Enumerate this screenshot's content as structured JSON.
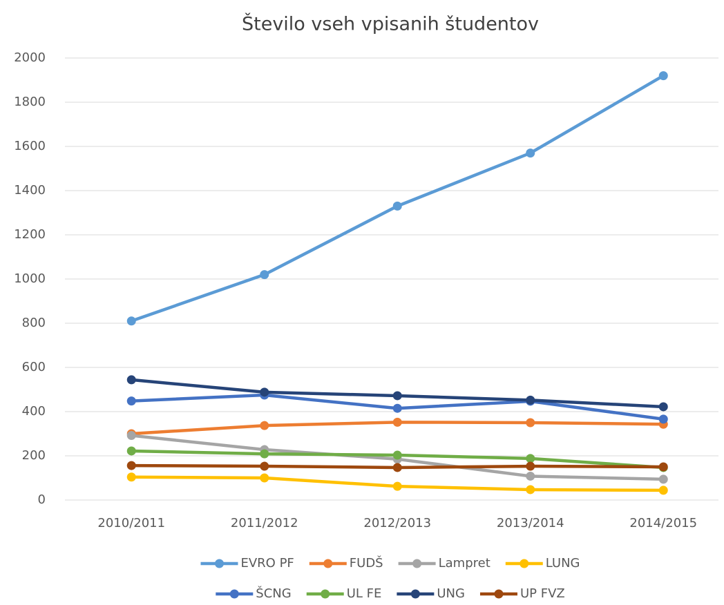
{
  "chart_data": {
    "type": "line",
    "title": "Število vseh vpisanih študentov",
    "categories": [
      "2010/2011",
      "2011/2012",
      "2012/2013",
      "2013/2014",
      "2014/2015"
    ],
    "series": [
      {
        "name": "EVRO PF",
        "color": "#5b9bd5",
        "values": [
          810,
          1020,
          1330,
          1570,
          1920
        ]
      },
      {
        "name": "FUDŠ",
        "color": "#ed7d31",
        "values": [
          300,
          337,
          352,
          350,
          343
        ]
      },
      {
        "name": "Lampret",
        "color": "#a5a5a5",
        "values": [
          292,
          228,
          185,
          108,
          94
        ]
      },
      {
        "name": "LUNG",
        "color": "#ffc000",
        "values": [
          104,
          100,
          62,
          47,
          44
        ]
      },
      {
        "name": "ŠCNG",
        "color": "#4472c4",
        "values": [
          448,
          475,
          415,
          447,
          366
        ]
      },
      {
        "name": "UL FE",
        "color": "#70ad47",
        "values": [
          222,
          209,
          203,
          188,
          147
        ]
      },
      {
        "name": "UNG",
        "color": "#264478",
        "values": [
          544,
          488,
          472,
          452,
          422
        ]
      },
      {
        "name": "UP FVZ",
        "color": "#9e480e",
        "values": [
          156,
          153,
          147,
          153,
          150
        ]
      }
    ],
    "ylim": [
      0,
      2000
    ],
    "yticks": [
      0,
      200,
      400,
      600,
      800,
      1000,
      1200,
      1400,
      1600,
      1800,
      2000
    ],
    "grid": true,
    "legend": "bottom"
  }
}
